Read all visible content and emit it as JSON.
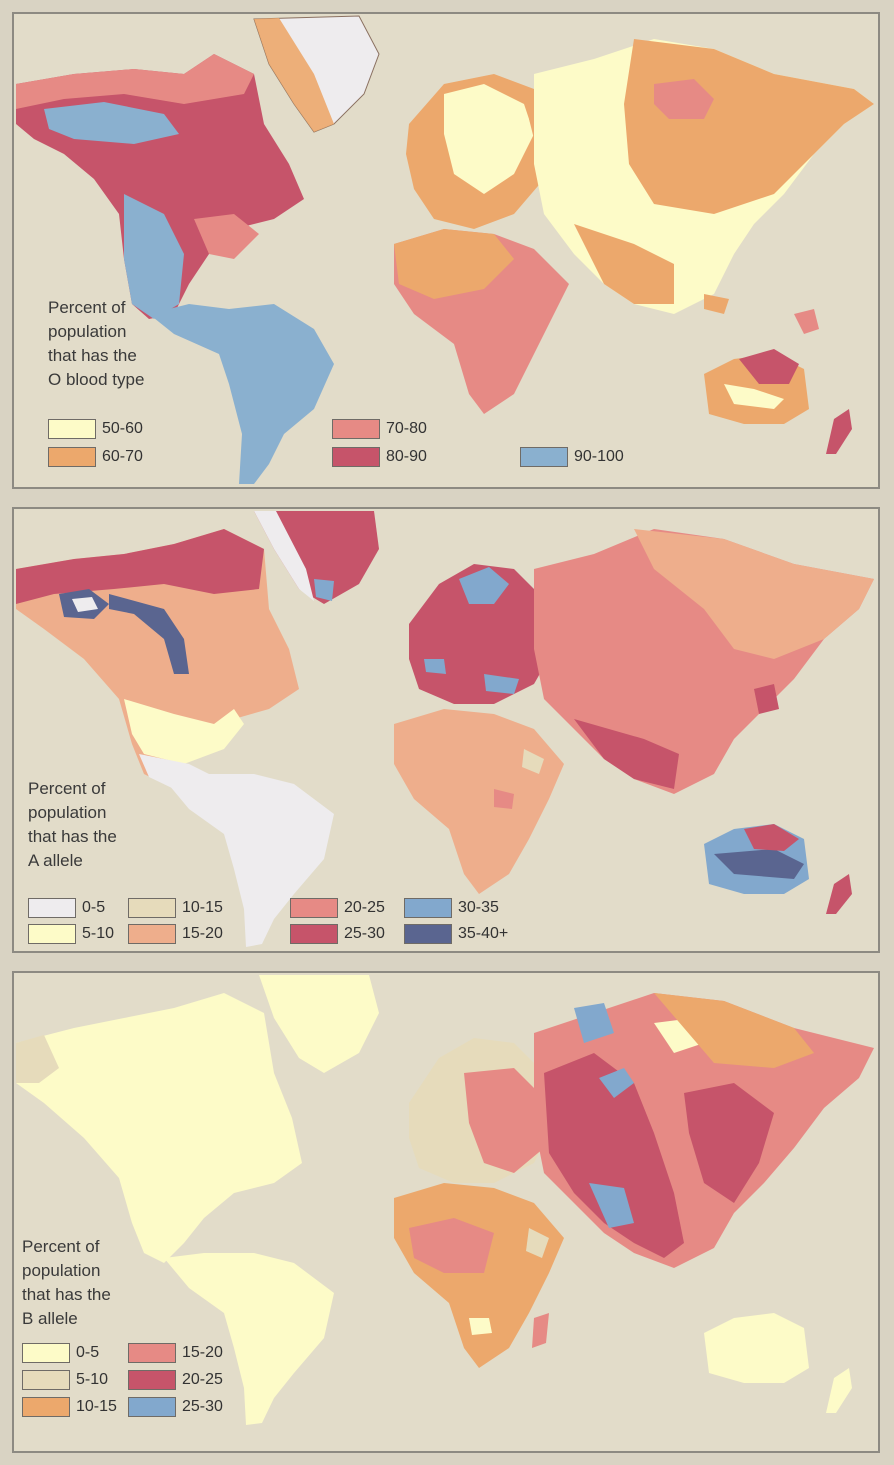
{
  "maps": {
    "o": {
      "caption": "Percent of\npopulation\nthat has the\nO blood type",
      "legend": [
        {
          "label": "50-60",
          "color": "#fdfbc8"
        },
        {
          "label": "60-70",
          "color": "#eca86c"
        },
        {
          "label": "70-80",
          "color": "#e68a85"
        },
        {
          "label": "80-90",
          "color": "#c6546a"
        },
        {
          "label": "90-100",
          "color": "#8ab0cf"
        }
      ]
    },
    "a": {
      "caption": "Percent of\npopulation\nthat has the\nA allele",
      "legend": [
        {
          "label": "0-5",
          "color": "#eeecee"
        },
        {
          "label": "5-10",
          "color": "#fdfbc8"
        },
        {
          "label": "10-15",
          "color": "#e6dbbb"
        },
        {
          "label": "15-20",
          "color": "#eeae8c"
        },
        {
          "label": "20-25",
          "color": "#e68a85"
        },
        {
          "label": "25-30",
          "color": "#c6546a"
        },
        {
          "label": "30-35",
          "color": "#82a8cd"
        },
        {
          "label": "35-40+",
          "color": "#5a6590"
        }
      ]
    },
    "b": {
      "caption": "Percent of\npopulation\nthat has the\nB allele",
      "legend": [
        {
          "label": "0-5",
          "color": "#fdfbc8"
        },
        {
          "label": "5-10",
          "color": "#e6dbbb"
        },
        {
          "label": "10-15",
          "color": "#eca86c"
        },
        {
          "label": "15-20",
          "color": "#e68a85"
        },
        {
          "label": "20-25",
          "color": "#c6546a"
        },
        {
          "label": "25-30",
          "color": "#82a8cd"
        }
      ]
    }
  }
}
